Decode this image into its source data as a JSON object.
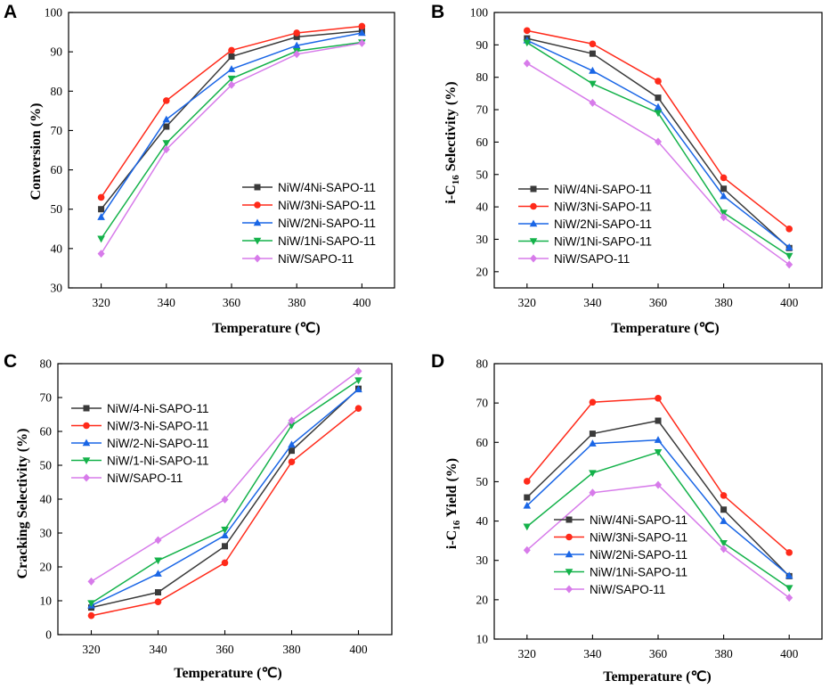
{
  "figure": {
    "x_values": [
      320,
      340,
      360,
      380,
      400
    ],
    "series_colors": [
      "#3a3a3a",
      "#ff2a1a",
      "#1a66e6",
      "#14b24a",
      "#d77bea"
    ],
    "series_markers": [
      "square",
      "circle",
      "triangle-up",
      "triangle-down",
      "diamond"
    ]
  },
  "chart_data": [
    {
      "panel": "A",
      "type": "line",
      "title": "",
      "xlabel": "Temperature (℃)",
      "ylabel": "Conversion (%)",
      "ylabel_sub": "",
      "ylabel_rest": "",
      "x": [
        320,
        340,
        360,
        380,
        400
      ],
      "xticks": [
        "320",
        "340",
        "360",
        "380",
        "400"
      ],
      "yticks": [
        "30",
        "40",
        "50",
        "60",
        "70",
        "80",
        "90",
        "100"
      ],
      "xlim": [
        310,
        410
      ],
      "ylim": [
        30,
        100
      ],
      "legend_position": "bottom-right",
      "series": [
        {
          "name": "NiW/4Ni-SAPO-11",
          "values": [
            50.0,
            71.0,
            88.8,
            93.8,
            95.3
          ]
        },
        {
          "name": "NiW/3Ni-SAPO-11",
          "values": [
            53.0,
            77.6,
            90.4,
            94.8,
            96.5
          ]
        },
        {
          "name": "NiW/2Ni-SAPO-11",
          "values": [
            48.0,
            72.8,
            85.6,
            91.6,
            94.8
          ]
        },
        {
          "name": "NiW/1Ni-SAPO-11",
          "values": [
            42.5,
            66.8,
            83.2,
            90.2,
            92.4
          ]
        },
        {
          "name": "NiW/SAPO-11",
          "values": [
            38.7,
            65.2,
            81.6,
            89.4,
            92.2
          ]
        }
      ]
    },
    {
      "panel": "B",
      "type": "line",
      "title": "",
      "xlabel": "Temperature (℃)",
      "ylabel": "i-C",
      "ylabel_sub": "16",
      "ylabel_rest": " Selectivity (%)",
      "x": [
        320,
        340,
        360,
        380,
        400
      ],
      "xticks": [
        "320",
        "340",
        "360",
        "380",
        "400"
      ],
      "yticks": [
        "20",
        "30",
        "40",
        "50",
        "60",
        "70",
        "80",
        "90",
        "100"
      ],
      "xlim": [
        310,
        410
      ],
      "ylim": [
        15,
        100
      ],
      "legend_position": "bottom-left",
      "series": [
        {
          "name": "NiW/4Ni-SAPO-11",
          "values": [
            92.0,
            87.3,
            73.7,
            45.6,
            27.3
          ]
        },
        {
          "name": "NiW/3Ni-SAPO-11",
          "values": [
            94.4,
            90.3,
            78.8,
            49.0,
            33.2
          ]
        },
        {
          "name": "NiW/2Ni-SAPO-11",
          "values": [
            91.4,
            82.0,
            70.8,
            43.3,
            27.5
          ]
        },
        {
          "name": "NiW/1Ni-SAPO-11",
          "values": [
            90.7,
            78.0,
            69.0,
            38.2,
            24.9
          ]
        },
        {
          "name": "NiW/SAPO-11",
          "values": [
            84.3,
            72.1,
            60.1,
            36.8,
            22.2
          ]
        }
      ]
    },
    {
      "panel": "C",
      "type": "line",
      "title": "",
      "xlabel": "Temperature (℃)",
      "ylabel": "Cracking Selectivity (%)",
      "ylabel_sub": "",
      "ylabel_rest": "",
      "x": [
        320,
        340,
        360,
        380,
        400
      ],
      "xticks": [
        "320",
        "340",
        "360",
        "380",
        "400"
      ],
      "yticks": [
        "0",
        "10",
        "20",
        "30",
        "40",
        "50",
        "60",
        "70",
        "80"
      ],
      "xlim": [
        310,
        410
      ],
      "ylim": [
        0,
        80
      ],
      "legend_position": "top-left",
      "series": [
        {
          "name": "NiW/4-Ni-SAPO-11",
          "values": [
            8.0,
            12.5,
            26.1,
            54.3,
            72.6
          ]
        },
        {
          "name": "NiW/3-Ni-SAPO-11",
          "values": [
            5.6,
            9.7,
            21.2,
            51.0,
            66.8
          ]
        },
        {
          "name": "NiW/2-Ni-SAPO-11",
          "values": [
            8.6,
            18.0,
            29.3,
            56.1,
            72.4
          ]
        },
        {
          "name": "NiW/1-Ni-SAPO-11",
          "values": [
            9.3,
            21.9,
            31.0,
            61.8,
            75.1
          ]
        },
        {
          "name": "NiW/SAPO-11",
          "values": [
            15.7,
            27.9,
            39.9,
            63.2,
            77.8
          ]
        }
      ]
    },
    {
      "panel": "D",
      "type": "line",
      "title": "",
      "xlabel": "Temperature (℃)",
      "ylabel": "i-C",
      "ylabel_sub": "16",
      "ylabel_rest": " Yield (%)",
      "x": [
        320,
        340,
        360,
        380,
        400
      ],
      "xticks": [
        "320",
        "340",
        "360",
        "380",
        "400"
      ],
      "yticks": [
        "10",
        "20",
        "30",
        "40",
        "50",
        "60",
        "70",
        "80"
      ],
      "xlim": [
        310,
        410
      ],
      "ylim": [
        10,
        80
      ],
      "legend_position": "bottom-left",
      "series": [
        {
          "name": "NiW/4Ni-SAPO-11",
          "values": [
            46.0,
            62.2,
            65.5,
            42.9,
            26.0
          ]
        },
        {
          "name": "NiW/3Ni-SAPO-11",
          "values": [
            50.1,
            70.2,
            71.2,
            46.5,
            32.0
          ]
        },
        {
          "name": "NiW/2Ni-SAPO-11",
          "values": [
            43.9,
            59.7,
            60.6,
            40.0,
            26.1
          ]
        },
        {
          "name": "NiW/1Ni-SAPO-11",
          "values": [
            38.6,
            52.2,
            57.5,
            34.4,
            23.0
          ]
        },
        {
          "name": "NiW/SAPO-11",
          "values": [
            32.6,
            47.2,
            49.2,
            32.9,
            20.5
          ]
        }
      ]
    }
  ]
}
